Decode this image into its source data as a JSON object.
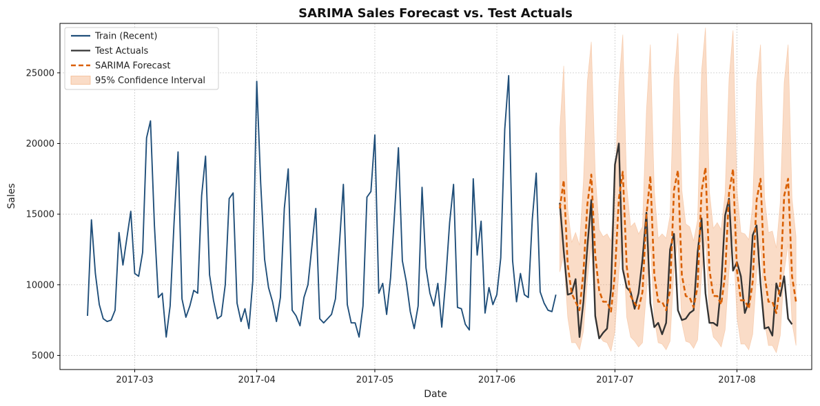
{
  "chart_data": {
    "type": "line",
    "title": "SARIMA Sales Forecast vs. Test Actuals",
    "xlabel": "Date",
    "ylabel": "Sales",
    "xlim": [
      "2017-02-10",
      "2017-08-20"
    ],
    "ylim": [
      4000,
      28500
    ],
    "x_ticks": [
      "2017-03-01",
      "2017-04-01",
      "2017-05-01",
      "2017-06-01",
      "2017-07-01",
      "2017-08-01"
    ],
    "x_tick_labels": [
      "2017-03",
      "2017-04",
      "2017-05",
      "2017-06",
      "2017-07",
      "2017-08"
    ],
    "y_ticks": [
      5000,
      10000,
      15000,
      20000,
      25000
    ],
    "y_tick_labels": [
      "5000",
      "10000",
      "15000",
      "20000",
      "25000"
    ],
    "grid": true,
    "legend_position": "top-left",
    "legend": [
      {
        "label": "Train (Recent)",
        "kind": "line",
        "color": "#1f4e79",
        "dash": false
      },
      {
        "label": "Test Actuals",
        "kind": "line",
        "color": "#333333",
        "dash": false
      },
      {
        "label": "SARIMA Forecast",
        "kind": "line",
        "color": "#d95f02",
        "dash": true
      },
      {
        "label": "95% Confidence Interval",
        "kind": "band",
        "color": "#f4b183"
      }
    ],
    "series": [
      {
        "name": "Train (Recent)",
        "color": "#1f4e79",
        "x_start": "2017-02-17",
        "x_step_days": 1,
        "values": [
          7800,
          14600,
          10800,
          8600,
          7600,
          7400,
          7500,
          8200,
          13700,
          11400,
          13300,
          15200,
          10800,
          10600,
          12300,
          20400,
          21600,
          14200,
          9100,
          9400,
          6300,
          8500,
          14400,
          19400,
          9000,
          7700,
          8500,
          9600,
          9400,
          16300,
          19100,
          10700,
          8900,
          7600,
          7800,
          10000,
          16100,
          16500,
          8700,
          7400,
          8300,
          6900,
          10300,
          24400,
          17200,
          11800,
          9800,
          8800,
          7400,
          9100,
          15400,
          18200,
          8200,
          7800,
          7100,
          9100,
          10000,
          12700,
          15400,
          7600,
          7300,
          7600,
          7900,
          9000,
          12900,
          17100,
          8600,
          7300,
          7300,
          6300,
          8500,
          16200,
          16600,
          20600,
          9400,
          10100,
          7900,
          10500,
          15000,
          19700,
          11700,
          10200,
          8100,
          6900,
          8500,
          16900,
          11200,
          9400,
          8500,
          10100,
          7000,
          10300,
          14400,
          17100,
          8400,
          8300,
          7200,
          6800,
          17500,
          12100,
          14500,
          8000,
          9800,
          8600,
          9300,
          11900,
          21000,
          24800,
          11700,
          8800,
          10800,
          9300,
          9100,
          14600,
          17900,
          9500,
          8700,
          8200,
          8100,
          9300
        ]
      },
      {
        "name": "Test Actuals",
        "color": "#333333",
        "x_start": "2017-06-17",
        "x_step_days": 1,
        "values": [
          15800,
          12400,
          9300,
          9400,
          10400,
          6300,
          8800,
          12700,
          16000,
          7800,
          6200,
          6600,
          6900,
          9700,
          18500,
          20000,
          11100,
          9800,
          9500,
          8300,
          9400,
          11800,
          15100,
          8700,
          7000,
          7300,
          6500,
          7300,
          12500,
          13600,
          8200,
          7500,
          7600,
          8000,
          8200,
          12300,
          14700,
          9400,
          7300,
          7300,
          7100,
          10000,
          14900,
          16100,
          11000,
          11600,
          10600,
          8000,
          8800,
          13500,
          14200,
          10100,
          6900,
          7000,
          6400,
          10100,
          9200,
          10600,
          7600,
          7200
        ]
      },
      {
        "name": "SARIMA Forecast",
        "color": "#d95f02",
        "x_start": "2017-06-17",
        "x_step_days": 1,
        "values": [
          15400,
          17400,
          11400,
          9400,
          8800,
          8200,
          10900,
          15700,
          17800,
          12100,
          9600,
          8800,
          8800,
          8100,
          10800,
          16100,
          18000,
          11300,
          9200,
          8700,
          8300,
          9500,
          14900,
          17700,
          10700,
          8800,
          8800,
          8200,
          9600,
          16700,
          18100,
          10700,
          9200,
          9100,
          8400,
          9900,
          16600,
          18300,
          11100,
          9200,
          9200,
          8600,
          10700,
          16500,
          18200,
          11000,
          8900,
          8900,
          8300,
          10200,
          16000,
          17500,
          10700,
          8800,
          8800,
          8000,
          10100,
          16300,
          17500,
          10600,
          8800
        ]
      },
      {
        "name": "95% Confidence Interval",
        "kind": "band",
        "color": "#f4b183",
        "x_start": "2017-06-17",
        "x_step_days": 1,
        "lower": [
          10900,
          12100,
          7700,
          5900,
          5900,
          5400,
          6700,
          10300,
          12900,
          7800,
          6400,
          6000,
          5900,
          5300,
          6700,
          10900,
          13400,
          7700,
          6300,
          6000,
          5600,
          5900,
          9500,
          13000,
          7600,
          5900,
          5800,
          5400,
          6000,
          11100,
          13300,
          7300,
          6000,
          5900,
          5500,
          6100,
          10700,
          13400,
          7800,
          6300,
          6000,
          5600,
          6800,
          11000,
          13500,
          7700,
          5800,
          5800,
          5400,
          6500,
          10700,
          12800,
          7400,
          5700,
          5700,
          5200,
          6400,
          10900,
          12900,
          7300,
          5700
        ],
        "upper": [
          21000,
          25500,
          15400,
          13000,
          13700,
          12800,
          17300,
          24400,
          27200,
          17900,
          13900,
          13400,
          13600,
          13100,
          17000,
          24100,
          27700,
          17000,
          14100,
          14400,
          13600,
          14100,
          22300,
          27000,
          16700,
          13300,
          13600,
          13300,
          14900,
          24600,
          27800,
          16700,
          14300,
          14100,
          13100,
          14600,
          25100,
          28200,
          16600,
          14000,
          14400,
          13900,
          16500,
          24600,
          28000,
          16800,
          13700,
          13600,
          13200,
          15700,
          24300,
          27000,
          16200,
          13700,
          13800,
          12600,
          15800,
          24300,
          27000,
          16100,
          13400
        ]
      }
    ]
  }
}
